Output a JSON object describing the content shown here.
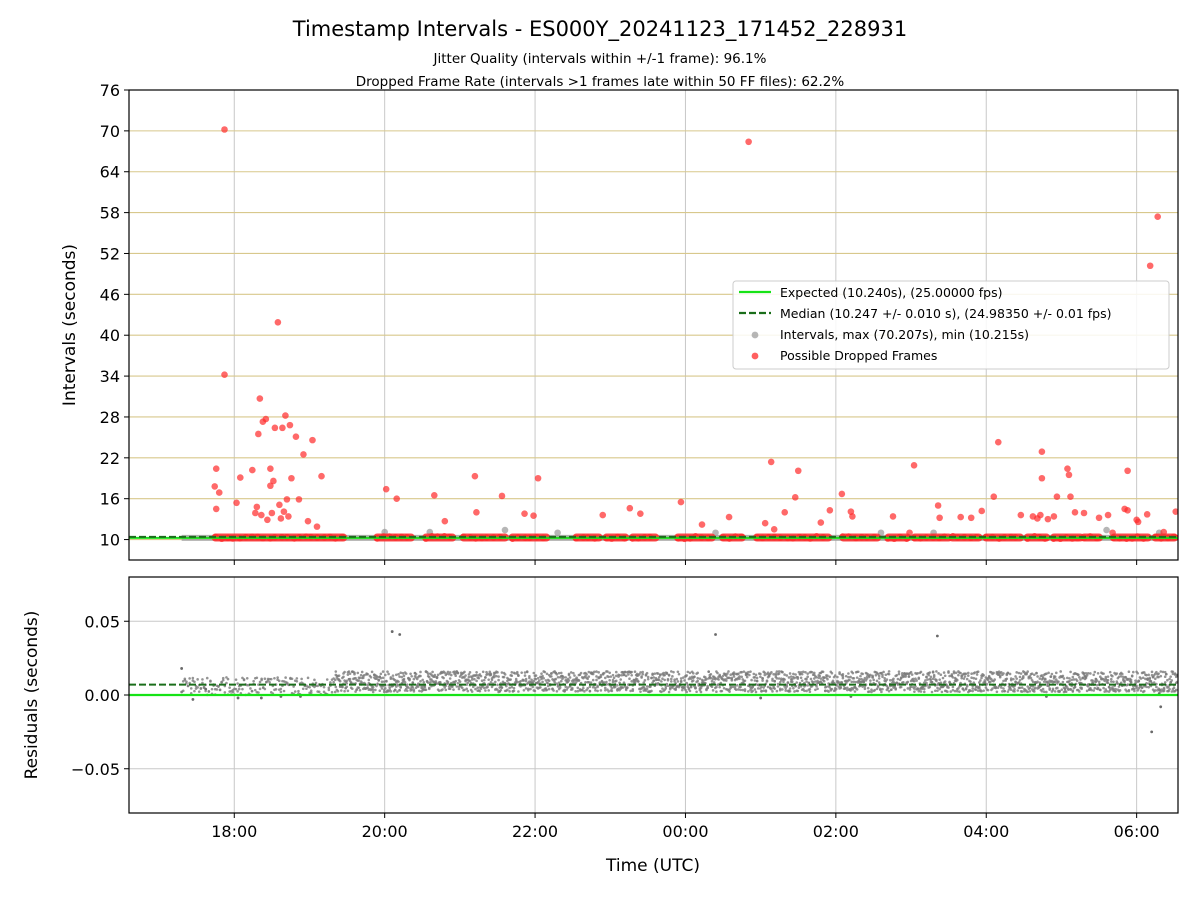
{
  "chart_data": [
    {
      "type": "scatter",
      "title": "Timestamp Intervals - ES000Y_20241123_171452_228931",
      "subtitle_lines": [
        "Jitter Quality (intervals within +/-1 frame): 96.1%",
        "Dropped Frame Rate (intervals >1 frames late within 50 FF files): 62.2%"
      ],
      "xlabel": "",
      "ylabel": "Intervals (seconds)",
      "x_unit": "hours since 00:00 UTC on 2024-11-23 (values past 24 are on 2024-11-24)",
      "xlim": [
        16.6,
        30.55
      ],
      "ylim": [
        7,
        76
      ],
      "yticks": [
        10,
        16,
        22,
        28,
        34,
        40,
        46,
        52,
        58,
        64,
        70,
        76
      ],
      "ytick_labels": [
        "10",
        "16",
        "22",
        "28",
        "34",
        "40",
        "46",
        "52",
        "58",
        "64",
        "70",
        "76"
      ],
      "grid": "on (vertical gray at hour ticks, horizontal gold at y ticks)",
      "legend_position": "center-right",
      "colors": {
        "expected": "#16e316",
        "median": "#1a6e1a",
        "intervals": "#9e9e9e",
        "dropped": "#ff2a2a",
        "ygrid": "#d8c88c",
        "xgrid": "#c8c8c8"
      },
      "legend": [
        "Expected (10.240s), (25.00000 fps)",
        "Median (10.247 +/- 0.010 s), (24.98350 +/- 0.01 fps)",
        "Intervals, max (70.207s), min (10.215s)",
        "Possible Dropped Frames"
      ],
      "expected_line": 10.24,
      "median_line": 10.247,
      "series": [
        {
          "name": "Possible Dropped Frames",
          "points": [
            [
              17.76,
              20.4
            ],
            [
              17.74,
              17.8
            ],
            [
              17.76,
              14.5
            ],
            [
              17.8,
              16.9
            ],
            [
              17.87,
              70.2
            ],
            [
              17.87,
              34.2
            ],
            [
              18.03,
              15.4
            ],
            [
              18.08,
              19.1
            ],
            [
              18.24,
              20.2
            ],
            [
              18.28,
              13.9
            ],
            [
              18.3,
              14.8
            ],
            [
              18.32,
              25.5
            ],
            [
              18.34,
              30.7
            ],
            [
              18.36,
              13.6
            ],
            [
              18.38,
              27.3
            ],
            [
              18.42,
              27.7
            ],
            [
              18.44,
              12.9
            ],
            [
              18.48,
              20.4
            ],
            [
              18.48,
              17.9
            ],
            [
              18.5,
              13.9
            ],
            [
              18.52,
              18.6
            ],
            [
              18.54,
              26.4
            ],
            [
              18.58,
              41.9
            ],
            [
              18.6,
              15.1
            ],
            [
              18.62,
              13.1
            ],
            [
              18.64,
              26.4
            ],
            [
              18.66,
              14.1
            ],
            [
              18.68,
              28.2
            ],
            [
              18.7,
              15.9
            ],
            [
              18.72,
              13.4
            ],
            [
              18.74,
              26.8
            ],
            [
              18.76,
              19.0
            ],
            [
              18.82,
              25.1
            ],
            [
              18.86,
              15.9
            ],
            [
              18.92,
              22.5
            ],
            [
              18.98,
              12.7
            ],
            [
              19.04,
              24.6
            ],
            [
              19.1,
              11.9
            ],
            [
              19.16,
              19.3
            ],
            [
              20.02,
              17.4
            ],
            [
              20.16,
              16.0
            ],
            [
              20.66,
              16.5
            ],
            [
              20.8,
              12.7
            ],
            [
              21.2,
              19.3
            ],
            [
              21.22,
              14.0
            ],
            [
              21.56,
              16.4
            ],
            [
              21.86,
              13.8
            ],
            [
              21.98,
              13.5
            ],
            [
              22.04,
              19.0
            ],
            [
              22.9,
              13.6
            ],
            [
              23.26,
              14.6
            ],
            [
              23.4,
              13.8
            ],
            [
              23.94,
              15.5
            ],
            [
              24.22,
              12.2
            ],
            [
              24.58,
              13.3
            ],
            [
              24.84,
              68.4
            ],
            [
              25.06,
              12.4
            ],
            [
              25.14,
              21.4
            ],
            [
              25.18,
              11.5
            ],
            [
              25.32,
              14.0
            ],
            [
              25.46,
              16.2
            ],
            [
              25.5,
              20.1
            ],
            [
              25.8,
              12.5
            ],
            [
              25.92,
              14.3
            ],
            [
              26.08,
              16.7
            ],
            [
              26.2,
              14.1
            ],
            [
              26.22,
              13.4
            ],
            [
              26.76,
              13.4
            ],
            [
              26.98,
              11.0
            ],
            [
              27.04,
              20.9
            ],
            [
              27.36,
              15.0
            ],
            [
              27.38,
              13.2
            ],
            [
              27.66,
              13.3
            ],
            [
              27.8,
              13.2
            ],
            [
              27.94,
              14.2
            ],
            [
              28.1,
              16.3
            ],
            [
              28.16,
              24.3
            ],
            [
              28.46,
              13.6
            ],
            [
              28.62,
              13.4
            ],
            [
              28.68,
              13.1
            ],
            [
              28.72,
              13.6
            ],
            [
              28.74,
              22.9
            ],
            [
              28.74,
              19.0
            ],
            [
              28.82,
              13.0
            ],
            [
              28.9,
              13.4
            ],
            [
              28.94,
              16.3
            ],
            [
              29.08,
              20.4
            ],
            [
              29.1,
              19.5
            ],
            [
              29.12,
              16.3
            ],
            [
              29.18,
              14.0
            ],
            [
              29.3,
              13.9
            ],
            [
              29.5,
              13.2
            ],
            [
              29.62,
              13.6
            ],
            [
              29.68,
              11.0
            ],
            [
              29.84,
              14.5
            ],
            [
              29.88,
              14.3
            ],
            [
              29.88,
              20.1
            ],
            [
              30.0,
              12.9
            ],
            [
              30.02,
              12.6
            ],
            [
              30.14,
              13.7
            ],
            [
              30.18,
              50.2
            ],
            [
              30.28,
              57.4
            ],
            [
              30.36,
              11.1
            ],
            [
              30.52,
              14.1
            ]
          ],
          "baseline_band": {
            "y": 10.3,
            "x_ranges": [
              [
                17.75,
                19.45
              ],
              [
                19.9,
                20.35
              ],
              [
                20.55,
                20.9
              ],
              [
                21.05,
                21.6
              ],
              [
                21.7,
                22.15
              ],
              [
                22.55,
                22.85
              ],
              [
                22.95,
                23.2
              ],
              [
                23.3,
                23.6
              ],
              [
                23.9,
                24.35
              ],
              [
                24.5,
                24.75
              ],
              [
                24.95,
                25.9
              ],
              [
                26.1,
                26.55
              ],
              [
                26.7,
                26.95
              ],
              [
                27.05,
                27.5
              ],
              [
                27.55,
                27.9
              ],
              [
                28.0,
                28.45
              ],
              [
                28.55,
                28.8
              ],
              [
                28.9,
                29.25
              ],
              [
                29.3,
                29.5
              ],
              [
                29.7,
                30.15
              ],
              [
                30.25,
                30.5
              ]
            ]
          }
        },
        {
          "name": "Intervals, max (70.207s), min (10.215s)",
          "baseline_band": {
            "y": 10.25,
            "x_ranges": [
              [
                17.3,
                30.55
              ]
            ]
          },
          "points": [
            [
              20.0,
              11.1
            ],
            [
              20.6,
              11.1
            ],
            [
              21.6,
              11.4
            ],
            [
              22.3,
              11.0
            ],
            [
              24.4,
              11.0
            ],
            [
              26.6,
              11.0
            ],
            [
              27.3,
              11.0
            ],
            [
              29.6,
              11.4
            ],
            [
              30.3,
              11.0
            ]
          ]
        }
      ]
    },
    {
      "type": "scatter",
      "xlabel": "Time (UTC)",
      "ylabel": "Residuals (seconds)",
      "xlim": [
        16.6,
        30.55
      ],
      "ylim": [
        -0.08,
        0.08
      ],
      "yticks": [
        -0.05,
        0.0,
        0.05
      ],
      "ytick_labels": [
        "−0.05",
        "0.00",
        "0.05"
      ],
      "xticks": [
        18,
        20,
        22,
        24,
        26,
        28,
        30
      ],
      "xtick_labels": [
        "18:00",
        "20:00",
        "22:00",
        "00:00",
        "02:00",
        "04:00",
        "06:00"
      ],
      "grid": "on",
      "expected_line": 0.0,
      "median_line": 0.007,
      "series": [
        {
          "name": "Residuals",
          "bands": [
            {
              "x_range": [
                17.3,
                19.35
              ],
              "y_range": [
                0.0,
                0.012
              ]
            },
            {
              "x_range": [
                19.35,
                30.55
              ],
              "y_range": [
                0.002,
                0.016
              ]
            }
          ],
          "outliers": [
            [
              17.3,
              0.018
            ],
            [
              17.45,
              -0.003
            ],
            [
              17.62,
              0.004
            ],
            [
              18.05,
              -0.002
            ],
            [
              18.36,
              -0.002
            ],
            [
              18.62,
              -0.001
            ],
            [
              18.88,
              -0.001
            ],
            [
              20.1,
              0.043
            ],
            [
              20.2,
              0.041
            ],
            [
              24.4,
              0.041
            ],
            [
              25.0,
              -0.002
            ],
            [
              26.2,
              -0.001
            ],
            [
              27.35,
              0.04
            ],
            [
              28.8,
              -0.001
            ],
            [
              30.2,
              -0.025
            ],
            [
              30.32,
              -0.008
            ],
            [
              30.3,
              0.001
            ]
          ]
        }
      ]
    }
  ]
}
